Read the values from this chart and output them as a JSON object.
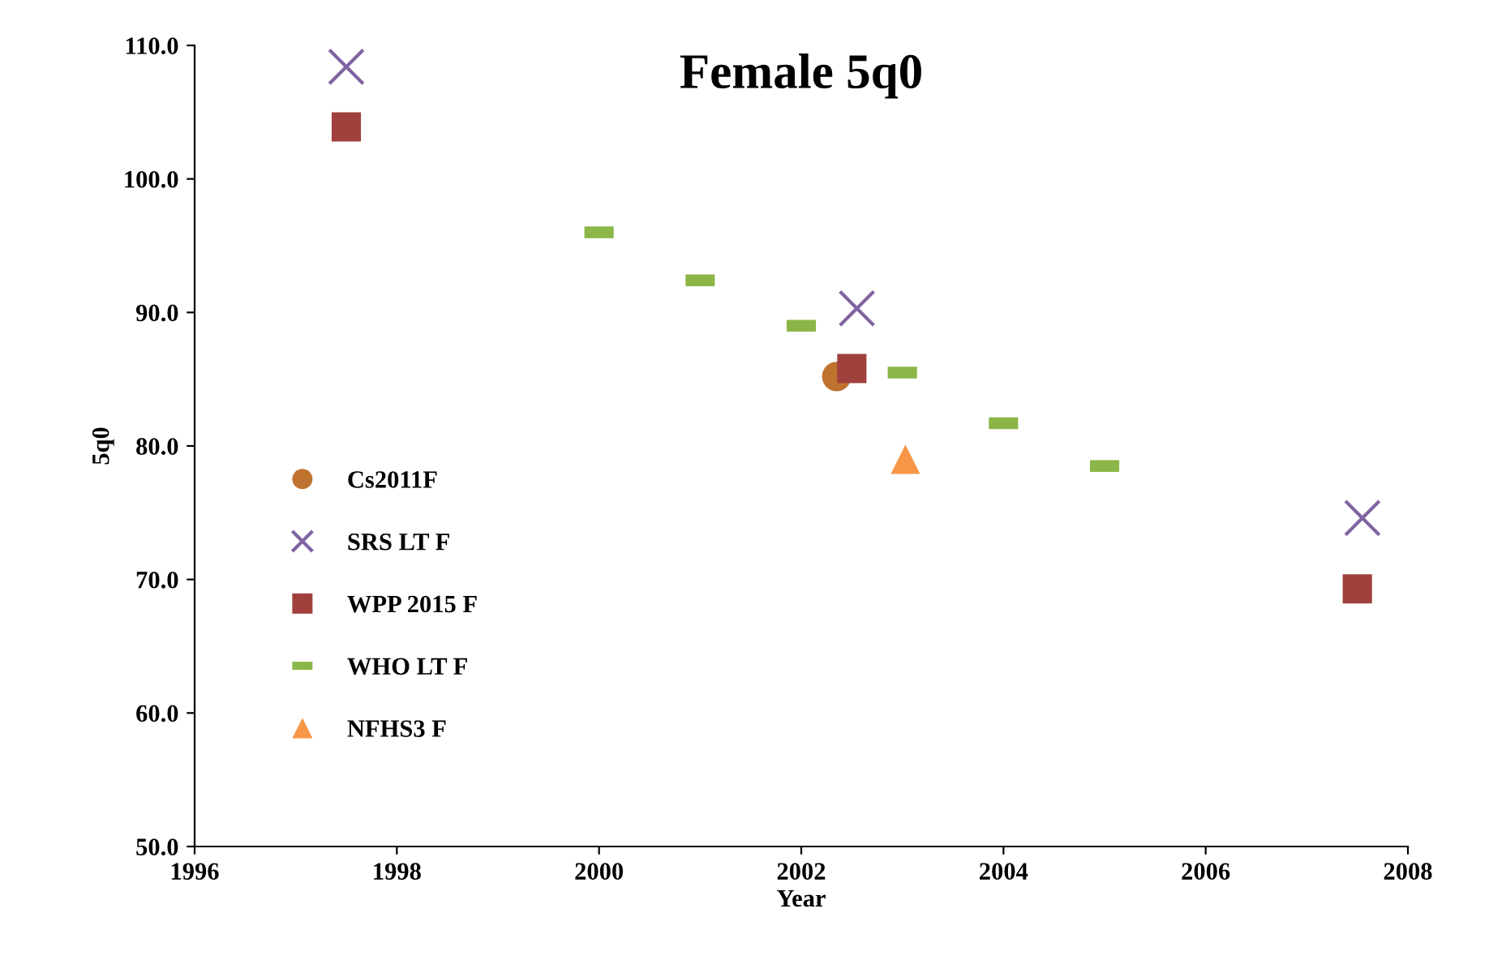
{
  "chart_data": {
    "type": "scatter",
    "title": "Female 5q0",
    "xlabel": "Year",
    "ylabel": "5q0",
    "xlim": [
      1996,
      2008
    ],
    "xticks": [
      1996,
      1998,
      2000,
      2002,
      2004,
      2006,
      2008
    ],
    "ylim": [
      50,
      110
    ],
    "yticks": [
      {
        "value": 50,
        "label": "50.0"
      },
      {
        "value": 60,
        "label": "60.0"
      },
      {
        "value": 70,
        "label": "70.0"
      },
      {
        "value": 80,
        "label": "80.0"
      },
      {
        "value": 90,
        "label": "90.0"
      },
      {
        "value": 100,
        "label": "100.0"
      },
      {
        "value": 110,
        "label": "110.0"
      }
    ],
    "grid": false,
    "legend": "left",
    "series": [
      {
        "name": "Cs2011F",
        "color": "#c0722f",
        "marker": "circle",
        "x": [
          2002.35
        ],
        "values": [
          85.2
        ]
      },
      {
        "name": "SRS LT F",
        "color": "#8064a2",
        "marker": "cross",
        "x": [
          1997.5,
          2002.55,
          2007.55
        ],
        "values": [
          108.4,
          90.3,
          74.6
        ]
      },
      {
        "name": "WPP 2015 F",
        "color": "#a0403c",
        "marker": "square",
        "x": [
          1997.5,
          2002.5,
          2007.5
        ],
        "values": [
          103.9,
          85.8,
          69.3
        ]
      },
      {
        "name": "WHO LT F",
        "color": "#8cb648",
        "x": [
          2000,
          2001,
          2002,
          2003,
          2004,
          2005
        ],
        "values": [
          96.0,
          92.4,
          89.0,
          85.5,
          81.7,
          78.5
        ]
      },
      {
        "name": "NFHS3 F",
        "color": "#f79646",
        "marker": "triangle",
        "x": [
          2003.03
        ],
        "values": [
          79.0
        ]
      }
    ]
  }
}
